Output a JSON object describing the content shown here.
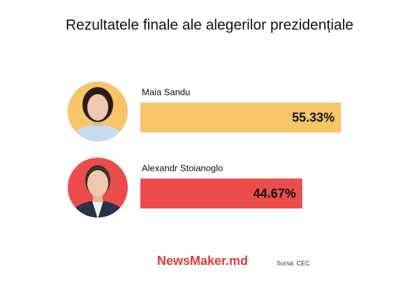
{
  "chart_data": {
    "type": "bar",
    "orientation": "horizontal",
    "title": "Rezultatele finale ale alegerilor prezidențiale",
    "categories": [
      "Maia Sandu",
      "Alexandr Stoianoglo"
    ],
    "values": [
      55.33,
      44.67
    ],
    "value_labels": [
      "55.33%",
      "44.67%"
    ],
    "colors": [
      "#f7c467",
      "#ec4c4c"
    ]
  },
  "footer": {
    "brand": "NewsMaker.md",
    "source": "Sursa: CEC"
  }
}
